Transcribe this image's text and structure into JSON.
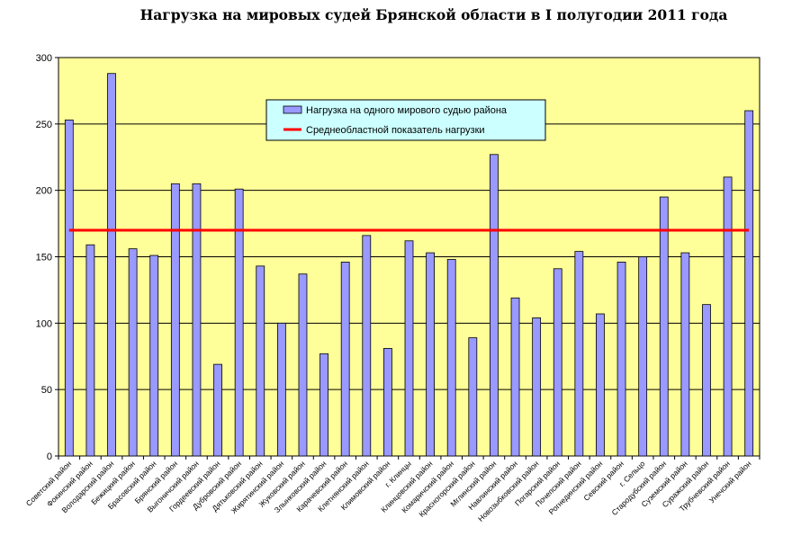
{
  "chart_data": {
    "type": "bar",
    "title": "Нагрузка на мировых судей Брянской области в I полугодии 2011 года",
    "xlabel": "",
    "ylabel": "",
    "ylim": [
      0,
      300
    ],
    "yticks": [
      0,
      50,
      100,
      150,
      200,
      250,
      300
    ],
    "grid": true,
    "legend_position": "top-center",
    "categories": [
      "Советский район",
      "Фокинский район",
      "Володарский район",
      "Бежицкий район",
      "Брасовский район",
      "Брянский район",
      "Выгоничский район",
      "Гордеевский район",
      "Дубровский район",
      "Дятьковский район",
      "Жирятинский район",
      "Жуковский район",
      "Злынковский район",
      "Карачевский район",
      "Клетнянский район",
      "Климовский район",
      "г. Клинцы",
      "Клинцовский район",
      "Комаричский район",
      "Красногорский район",
      "Мглинский район",
      "Навлинский район",
      "Новозыбковский район",
      "Погарский район",
      "Почепский район",
      "Рогнединский район",
      "Севский район",
      "г. Сельцо",
      "Стародубский район",
      "Суземский район",
      "Суражский район",
      "Трубчевский район",
      "Унечский район"
    ],
    "series": [
      {
        "name": "Нагрузка на одного мирового судью района",
        "color": "#9999ff",
        "values": [
          253,
          159,
          288,
          156,
          151,
          205,
          205,
          69,
          201,
          143,
          100,
          137,
          77,
          146,
          166,
          81,
          162,
          153,
          148,
          89,
          227,
          119,
          104,
          141,
          154,
          107,
          146,
          150,
          195,
          153,
          114,
          210,
          260
        ]
      },
      {
        "name": "Среднеобластной показатель нагрузки",
        "color": "#ff0000",
        "type": "line",
        "value": 170
      }
    ]
  }
}
